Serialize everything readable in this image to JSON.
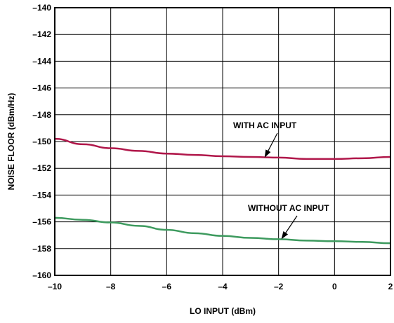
{
  "chart_data": {
    "type": "line",
    "xlabel": "LO INPUT (dBm)",
    "ylabel": "NOISE FLOOR (dBm/Hz)",
    "xlim": [
      -10,
      2
    ],
    "ylim": [
      -160,
      -140
    ],
    "xticks": [
      -10,
      -8,
      -6,
      -4,
      -2,
      0,
      2
    ],
    "yticks": [
      -140,
      -142,
      -144,
      -146,
      -148,
      -150,
      -152,
      -154,
      -156,
      -158,
      -160
    ],
    "xtick_labels": [
      "–10",
      "–8",
      "–6",
      "–4",
      "–2",
      "0",
      "2"
    ],
    "ytick_labels": [
      "–140",
      "–142",
      "–144",
      "–146",
      "–148",
      "–150",
      "–152",
      "–154",
      "–156",
      "–158",
      "–160"
    ],
    "grid": true,
    "series": [
      {
        "color": "#b0174a",
        "x": [
          -10,
          -9,
          -8,
          -7,
          -6,
          -5,
          -4,
          -3,
          -2,
          -1,
          0,
          1,
          2
        ],
        "y": [
          -149.8,
          -150.2,
          -150.5,
          -150.7,
          -150.9,
          -151.0,
          -151.1,
          -151.15,
          -151.2,
          -151.3,
          -151.3,
          -151.25,
          -151.15
        ]
      },
      {
        "color": "#3d9a5e",
        "x": [
          -10,
          -9,
          -8,
          -7,
          -6,
          -5,
          -4,
          -3,
          -2,
          -1,
          0,
          1,
          2
        ],
        "y": [
          -155.7,
          -155.85,
          -156.05,
          -156.3,
          -156.6,
          -156.85,
          -157.05,
          -157.2,
          -157.3,
          -157.4,
          -157.45,
          -157.5,
          -157.6
        ]
      }
    ],
    "annotations": [
      {
        "text": "WITH AC INPUT",
        "x": -2.5,
        "y": -151.2
      },
      {
        "text": "WITHOUT AC INPUT",
        "x": -1.9,
        "y": -157.3
      }
    ]
  }
}
